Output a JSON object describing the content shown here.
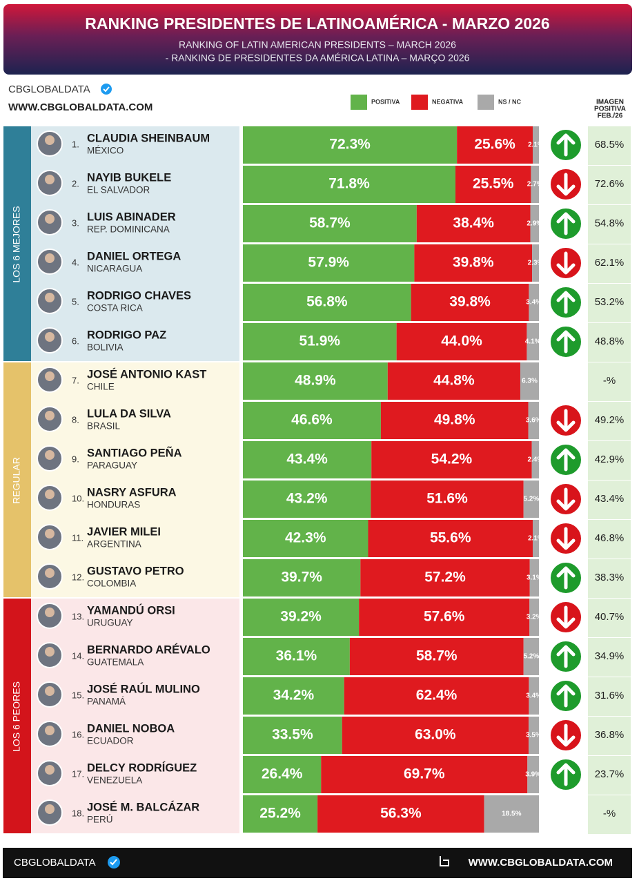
{
  "chart_data": {
    "type": "bar",
    "title": "RANKING PRESIDENTES DE LATINOAMÉRICA - MARZO 2026",
    "subtitle": [
      "RANKING OF LATIN AMERICAN PRESIDENTS – MARCH 2026",
      "- RANKING DE PRESIDENTES DA AMÉRICA LATINA – MARÇO 2026"
    ],
    "brand": "CBGLOBALDATA",
    "website": "WWW.CBGLOBALDATA.COM",
    "orientation": "horizontal",
    "stacked": true,
    "xlim": [
      0,
      100
    ],
    "ranks": [
      "1.",
      "2.",
      "3.",
      "4.",
      "5.",
      "6.",
      "7.",
      "8.",
      "9.",
      "10.",
      "11.",
      "12.",
      "13.",
      "14.",
      "15.",
      "16.",
      "17.",
      "18."
    ],
    "categories": [
      "CLAUDIA SHEINBAUM",
      "NAYIB BUKELE",
      "LUIS ABINADER",
      "DANIEL ORTEGA",
      "RODRIGO CHAVES",
      "RODRIGO PAZ",
      "JOSÉ ANTONIO KAST",
      "LULA DA SILVA",
      "SANTIAGO PEÑA",
      "NASRY ASFURA",
      "JAVIER MILEI",
      "GUSTAVO PETRO",
      "YAMANDÚ ORSI",
      "BERNARDO ARÉVALO",
      "JOSÉ RAÚL MULINO",
      "DANIEL NOBOA",
      "DELCY RODRÍGUEZ",
      "JOSÉ M. BALCÁZAR"
    ],
    "countries": [
      "MÉXICO",
      "EL SALVADOR",
      "REP. DOMINICANA",
      "NICARAGUA",
      "COSTA RICA",
      "BOLIVIA",
      "CHILE",
      "BRASIL",
      "PARAGUAY",
      "HONDURAS",
      "ARGENTINA",
      "COLOMBIA",
      "URUGUAY",
      "GUATEMALA",
      "PANAMÁ",
      "ECUADOR",
      "VENEZUELA",
      "PERÚ"
    ],
    "groups": [
      {
        "label": "LOS 6 MEJORES",
        "color": "#2f7f98",
        "background": "#dbe9ee"
      },
      {
        "label": "REGULAR",
        "color": "#e5c26a",
        "background": "#fcf8e4"
      },
      {
        "label": "LOS 6 PEORES",
        "color": "#d3141b",
        "background": "#fbe7e8"
      }
    ],
    "series": [
      {
        "name": "POSITIVA",
        "color": "#62b34a",
        "values": [
          72.3,
          71.8,
          58.7,
          57.9,
          56.8,
          51.9,
          48.9,
          46.6,
          43.4,
          43.2,
          42.3,
          39.7,
          39.2,
          36.1,
          34.2,
          33.5,
          26.4,
          25.2
        ],
        "value_labels": [
          "72.3%",
          "71.8%",
          "58.7%",
          "57.9%",
          "56.8%",
          "51.9%",
          "48.9%",
          "46.6%",
          "43.4%",
          "43.2%",
          "42.3%",
          "39.7%",
          "39.2%",
          "36.1%",
          "34.2%",
          "33.5%",
          "26.4%",
          "25.2%"
        ]
      },
      {
        "name": "NEGATIVA",
        "color": "#df1a1f",
        "values": [
          25.6,
          25.5,
          38.4,
          39.8,
          39.8,
          44.0,
          44.8,
          49.8,
          54.2,
          51.6,
          55.6,
          57.2,
          57.6,
          58.7,
          62.4,
          63.0,
          69.7,
          56.3
        ],
        "value_labels": [
          "25.6%",
          "25.5%",
          "38.4%",
          "39.8%",
          "39.8%",
          "44.0%",
          "44.8%",
          "49.8%",
          "54.2%",
          "51.6%",
          "55.6%",
          "57.2%",
          "57.6%",
          "58.7%",
          "62.4%",
          "63.0%",
          "69.7%",
          "56.3%"
        ]
      },
      {
        "name": "NS / NC",
        "color": "#a9a9a9",
        "values": [
          2.1,
          2.7,
          2.9,
          2.3,
          3.4,
          4.1,
          6.3,
          3.6,
          2.4,
          5.2,
          2.1,
          3.1,
          3.2,
          5.2,
          3.4,
          3.5,
          3.9,
          18.5
        ],
        "value_labels": [
          "2.1%",
          "2.7%",
          "2.9%",
          "2.3%",
          "3.4%",
          "4.1%",
          "6.3%",
          "3.6%",
          "2.4%",
          "5.2%",
          "2.1%",
          "3.1%",
          "3.2%",
          "5.2%",
          "3.4%",
          "3.5%",
          "3.9%",
          "18.5%"
        ]
      }
    ],
    "trend": [
      "up",
      "down",
      "up",
      "down",
      "up",
      "up",
      null,
      "down",
      "up",
      "down",
      "down",
      "up",
      "down",
      "up",
      "up",
      "down",
      "up",
      null
    ],
    "trend_colors": {
      "up": "#1e9b2c",
      "down": "#d8141b"
    },
    "prev_image": {
      "title": [
        "IMAGEN",
        "POSITIVA",
        "FEB./26"
      ],
      "values": [
        "68.5%",
        "72.6%",
        "54.8%",
        "62.1%",
        "53.2%",
        "48.8%",
        "-%",
        "49.2%",
        "42.9%",
        "43.4%",
        "46.8%",
        "38.3%",
        "40.7%",
        "34.9%",
        "31.6%",
        "36.8%",
        "23.7%",
        "-%"
      ]
    }
  }
}
